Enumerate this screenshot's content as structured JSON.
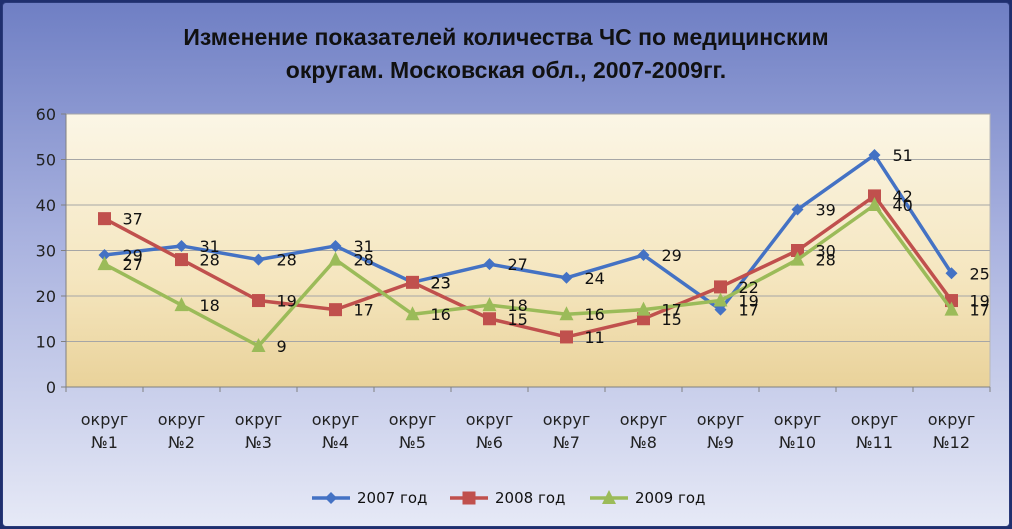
{
  "chart_data": {
    "type": "line",
    "title_lines": [
      "Изменение показателей количества ЧС по медицинским",
      "округам. Московская обл., 2007-2009гг."
    ],
    "categories": [
      [
        "округ",
        "№1"
      ],
      [
        "округ",
        "№2"
      ],
      [
        "округ",
        "№3"
      ],
      [
        "округ",
        "№4"
      ],
      [
        "округ",
        "№5"
      ],
      [
        "округ",
        "№6"
      ],
      [
        "округ",
        "№7"
      ],
      [
        "округ",
        "№8"
      ],
      [
        "округ",
        "№9"
      ],
      [
        "округ",
        "№10"
      ],
      [
        "округ",
        "№11"
      ],
      [
        "округ",
        "№12"
      ]
    ],
    "ylim": [
      0,
      60
    ],
    "yticks": [
      0,
      10,
      20,
      30,
      40,
      50,
      60
    ],
    "grid": true,
    "legend": "bottom",
    "series": [
      {
        "name": "2007 год",
        "color": "#4472c4",
        "marker": "diamond",
        "values": [
          29,
          31,
          28,
          31,
          23,
          27,
          24,
          29,
          17,
          39,
          51,
          25
        ]
      },
      {
        "name": "2008 год",
        "color": "#c0504d",
        "marker": "square",
        "values": [
          37,
          28,
          19,
          17,
          23,
          15,
          11,
          15,
          22,
          30,
          42,
          19
        ]
      },
      {
        "name": "2009 год",
        "color": "#9bbb59",
        "marker": "triangle",
        "values": [
          27,
          18,
          9,
          28,
          16,
          18,
          16,
          17,
          19,
          28,
          40,
          17
        ]
      }
    ]
  }
}
